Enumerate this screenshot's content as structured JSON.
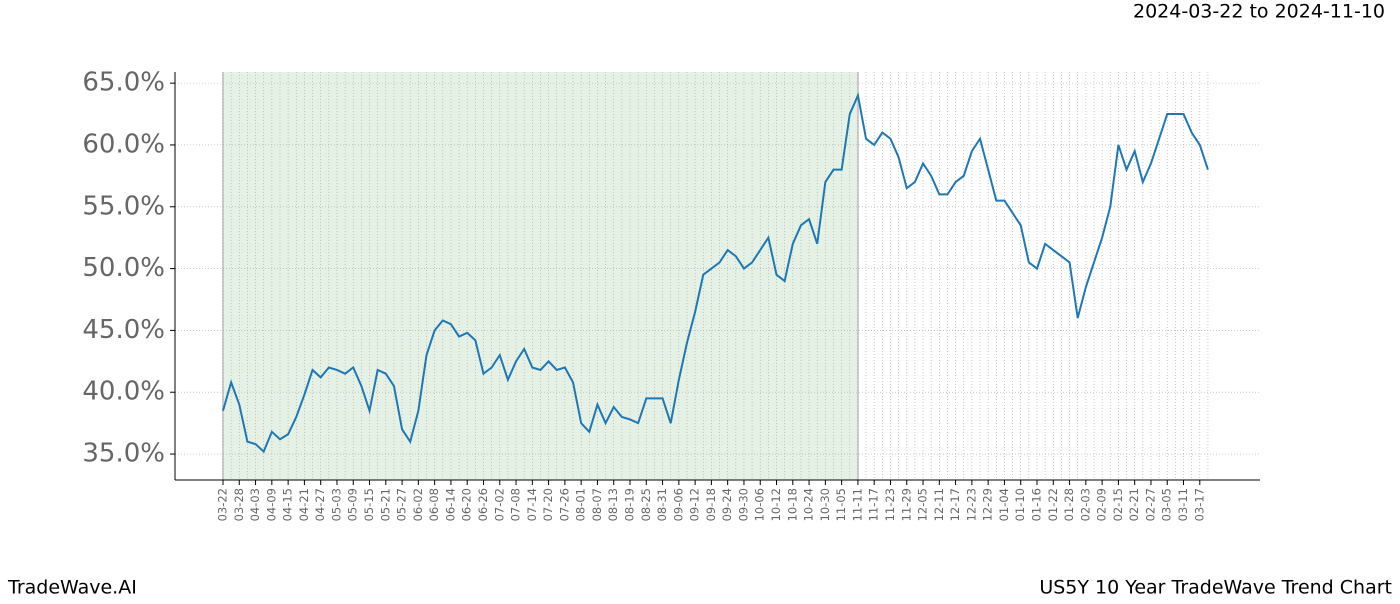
{
  "chart_data": {
    "type": "line",
    "subtitle": "2024-03-22 to 2024-11-10",
    "footer_left": "TradeWave.AI",
    "footer_right": "US5Y 10 Year TradeWave Trend Chart",
    "categories": [
      "03-22",
      null,
      "03-28",
      null,
      "04-03",
      null,
      "04-09",
      null,
      "04-15",
      null,
      "04-21",
      null,
      "04-27",
      null,
      "05-03",
      null,
      "05-09",
      null,
      "05-15",
      null,
      "05-21",
      null,
      "05-27",
      null,
      "06-02",
      null,
      "06-08",
      null,
      "06-14",
      null,
      "06-20",
      null,
      "06-26",
      null,
      "07-02",
      null,
      "07-08",
      null,
      "07-14",
      null,
      "07-20",
      null,
      "07-26",
      null,
      "08-01",
      null,
      "08-07",
      null,
      "08-13",
      null,
      "08-19",
      null,
      "08-25",
      null,
      "08-31",
      null,
      "09-06",
      null,
      "09-12",
      null,
      "09-18",
      null,
      "09-24",
      null,
      "09-30",
      null,
      "10-06",
      null,
      "10-12",
      null,
      "10-18",
      null,
      "10-24",
      null,
      "10-30",
      null,
      "11-05",
      null,
      "11-11",
      null,
      "11-17",
      null,
      "11-23",
      null,
      "11-29",
      null,
      "12-05",
      null,
      "12-11",
      null,
      "12-17",
      null,
      "12-23",
      null,
      "12-29",
      null,
      "01-04",
      null,
      "01-10",
      null,
      "01-16",
      null,
      "01-22",
      null,
      "01-28",
      null,
      "02-03",
      null,
      "02-09",
      null,
      "02-15",
      null,
      "02-21",
      null,
      "02-27",
      null,
      "03-05",
      null,
      "03-11",
      null,
      "03-17",
      null
    ],
    "series": [
      {
        "color": "#1f77b4",
        "values": [
          38.5,
          40.8,
          39.0,
          36.0,
          35.8,
          35.2,
          36.8,
          36.2,
          36.6,
          38.0,
          39.8,
          41.8,
          41.2,
          42.0,
          41.8,
          41.5,
          42.0,
          40.5,
          38.5,
          41.8,
          41.5,
          40.5,
          37.0,
          36.0,
          38.5,
          43.0,
          45.0,
          45.8,
          45.5,
          44.5,
          44.8,
          44.2,
          41.5,
          42.0,
          43.0,
          41.0,
          42.5,
          43.5,
          42.0,
          41.8,
          42.5,
          41.8,
          42.0,
          40.8,
          37.5,
          36.8,
          39.0,
          37.5,
          38.8,
          38.0,
          37.8,
          37.5,
          39.5,
          39.5,
          39.5,
          37.5,
          41.0,
          44.0,
          46.5,
          49.5,
          50.0,
          50.5,
          51.5,
          51.0,
          50.0,
          50.5,
          51.5,
          52.5,
          49.5,
          49.0,
          52.0,
          53.5,
          54.0,
          52.0,
          57.0,
          58.0,
          58.0,
          62.5,
          64.0,
          60.5,
          60.0,
          61.0,
          60.5,
          59.0,
          56.5,
          57.0,
          58.5,
          57.5,
          56.0,
          56.0,
          57.0,
          57.5,
          59.5,
          60.5,
          58.0,
          55.5,
          55.5,
          54.5,
          53.5,
          50.5,
          50.0,
          52.0,
          51.5,
          51.0,
          50.5,
          46.0,
          48.5,
          50.5,
          52.5,
          55.0,
          60.0,
          58.0,
          59.5,
          57.0,
          58.5,
          60.5,
          62.5,
          62.5,
          62.5,
          61.0,
          60.0,
          58.0
        ]
      }
    ],
    "shaded_range": [
      0,
      78
    ],
    "shade_color": "#e5f1e5",
    "ylim": [
      32.9,
      65.9
    ],
    "yticks": [
      {
        "value": 35,
        "label": "35.0%"
      },
      {
        "value": 40,
        "label": "40.0%"
      },
      {
        "value": 45,
        "label": "45.0%"
      },
      {
        "value": 50,
        "label": "50.0%"
      },
      {
        "value": 55,
        "label": "55.0%"
      },
      {
        "value": 60,
        "label": "60.0%"
      },
      {
        "value": 65,
        "label": "65.0%"
      }
    ],
    "grid": true
  }
}
